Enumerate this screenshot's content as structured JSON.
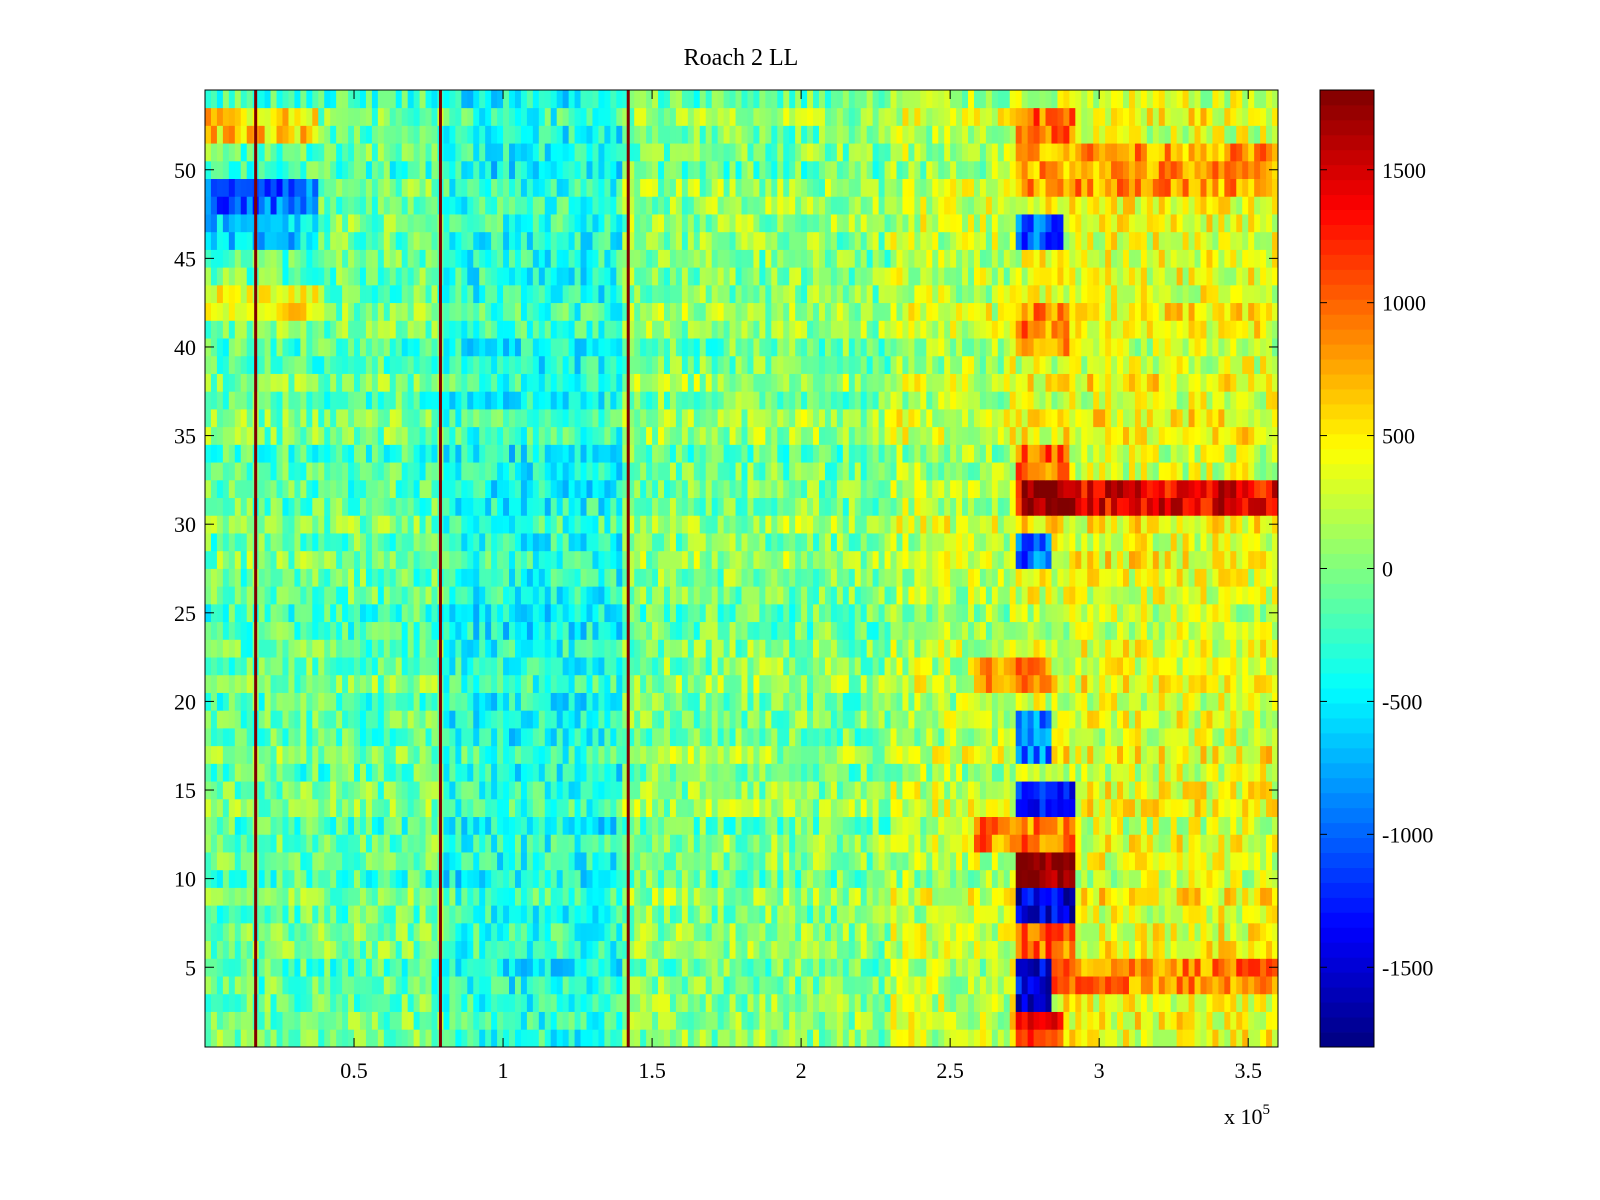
{
  "chart_data": {
    "type": "heatmap",
    "title": "Roach 2 LL",
    "xlabel": "",
    "ylabel": "",
    "x_exponent_label": "x 10",
    "x_exponent_power": "5",
    "xlim": [
      0,
      360000
    ],
    "ylim": [
      0.5,
      54.5
    ],
    "xticks": [
      50000,
      100000,
      150000,
      200000,
      250000,
      300000,
      350000
    ],
    "xtick_labels": [
      "0.5",
      "1",
      "1.5",
      "2",
      "2.5",
      "3",
      "3.5"
    ],
    "yticks": [
      5,
      10,
      15,
      20,
      25,
      30,
      35,
      40,
      45,
      50
    ],
    "ytick_labels": [
      "5",
      "10",
      "15",
      "20",
      "25",
      "30",
      "35",
      "40",
      "45",
      "50"
    ],
    "colorbar": {
      "colormap": "jet",
      "clim": [
        -1800,
        1800
      ],
      "ticks": [
        -1500,
        -1000,
        -500,
        0,
        500,
        1000,
        1500
      ],
      "tick_labels": [
        "-1500",
        "-1000",
        "-500",
        "0",
        "500",
        "1000",
        "1500"
      ]
    },
    "grid": false,
    "n_rows": 54,
    "baseline_by_x_range": [
      {
        "x": [
          0,
          80000
        ],
        "value": -100
      },
      {
        "x": [
          80000,
          140000
        ],
        "value": -350
      },
      {
        "x": [
          140000,
          230000
        ],
        "value": 0
      },
      {
        "x": [
          230000,
          270000
        ],
        "value": 200
      },
      {
        "x": [
          270000,
          360000
        ],
        "value": 350
      }
    ],
    "vertical_lines": [
      {
        "x": 17000,
        "value": 1800
      },
      {
        "x": 79000,
        "value": 1800
      },
      {
        "x": 142000,
        "value": 1800
      }
    ],
    "features": [
      {
        "x": [
          0,
          38000
        ],
        "rows": [
          52,
          53
        ],
        "value": 600
      },
      {
        "x": [
          0,
          38000
        ],
        "rows": [
          48,
          49
        ],
        "value": -1000
      },
      {
        "x": [
          0,
          38000
        ],
        "rows": [
          46,
          47
        ],
        "value": -600
      },
      {
        "x": [
          0,
          38000
        ],
        "rows": [
          42,
          43
        ],
        "value": 400
      },
      {
        "x": [
          272000,
          292000
        ],
        "rows": [
          52,
          53
        ],
        "value": 1000
      },
      {
        "x": [
          272000,
          360000
        ],
        "rows": [
          49,
          51
        ],
        "value": 800
      },
      {
        "x": [
          272000,
          288000
        ],
        "rows": [
          46,
          47
        ],
        "value": -1000
      },
      {
        "x": [
          272000,
          290000
        ],
        "rows": [
          40,
          42
        ],
        "value": 900
      },
      {
        "x": [
          272000,
          290000
        ],
        "rows": [
          33,
          34
        ],
        "value": 1000
      },
      {
        "x": [
          272000,
          360000
        ],
        "rows": [
          31,
          32
        ],
        "value": 1400
      },
      {
        "x": [
          275000,
          295000
        ],
        "rows": [
          31,
          32
        ],
        "value": 1800
      },
      {
        "x": [
          272000,
          285000
        ],
        "rows": [
          28,
          29
        ],
        "value": -1000
      },
      {
        "x": [
          258000,
          285000
        ],
        "rows": [
          21,
          22
        ],
        "value": 800
      },
      {
        "x": [
          272000,
          285000
        ],
        "rows": [
          17,
          19
        ],
        "value": -900
      },
      {
        "x": [
          272000,
          292000
        ],
        "rows": [
          14,
          15
        ],
        "value": -1200
      },
      {
        "x": [
          258000,
          292000
        ],
        "rows": [
          12,
          13
        ],
        "value": 900
      },
      {
        "x": [
          272000,
          292000
        ],
        "rows": [
          10,
          11
        ],
        "value": 1800
      },
      {
        "x": [
          272000,
          292000
        ],
        "rows": [
          8,
          9
        ],
        "value": -1500
      },
      {
        "x": [
          272000,
          292000
        ],
        "rows": [
          6,
          7
        ],
        "value": 1000
      },
      {
        "x": [
          272000,
          285000
        ],
        "rows": [
          3,
          5
        ],
        "value": -1400
      },
      {
        "x": [
          285000,
          360000
        ],
        "rows": [
          4,
          5
        ],
        "value": 900
      },
      {
        "x": [
          272000,
          288000
        ],
        "rows": [
          1,
          2
        ],
        "value": 1200
      }
    ]
  }
}
